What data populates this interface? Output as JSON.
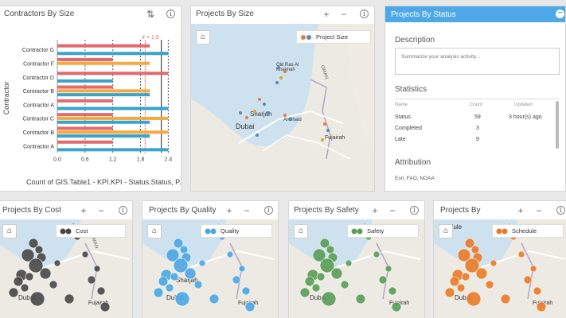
{
  "contractors": {
    "title": "Contractors By Size",
    "ylabel": "Contractor",
    "xlabel": "Count of GIS.Table1 - KPI.KPI - Status.Status, P...",
    "mean_label": "x̄ = 1.9",
    "xticks": [
      "0.0",
      "0.6",
      "1.2",
      "1.8",
      "2.4"
    ],
    "colors": {
      "blue": "#3aa3c9",
      "orange": "#f6a941",
      "red": "#e2696c"
    }
  },
  "chart_data": {
    "type": "bar",
    "orientation": "horizontal",
    "categories": [
      "Contractor G",
      "Contractor F",
      "Contractor D",
      "Contractor B",
      "Contractor A",
      "Contractor C",
      "Contractor B",
      "Contractor A"
    ],
    "series": [
      {
        "values": [
          2.0,
          1.2,
          2.4,
          1.2,
          1.2,
          1.2,
          1.2,
          1.2
        ]
      },
      {
        "values": [
          0,
          2.0,
          0,
          2.0,
          0,
          2.4,
          2.4,
          0
        ]
      },
      {
        "values": [
          2.4,
          0,
          1.2,
          2.0,
          2.4,
          2.0,
          2.0,
          2.4
        ]
      }
    ],
    "title": "Contractors By Size",
    "ylabel": "Contractor",
    "xlabel": "Count of GIS.Table1 - KPI.KPI - Status.Status, P...",
    "xlim": [
      0,
      2.6
    ],
    "xticks": [
      0,
      0.6,
      1.2,
      1.8,
      2.4
    ],
    "reference_lines": [
      {
        "label": "x̄ = 1.9",
        "value": 1.9
      }
    ]
  },
  "projects_size": {
    "title": "Projects By Size",
    "legend": "Project Size",
    "places": [
      "Old Ras Al Khaimah",
      "OMAN",
      "Sharjah",
      "Al Dhaid",
      "Dubai",
      "Fujairah"
    ]
  },
  "status": {
    "title": "Projects By Status",
    "description_label": "Description",
    "description_placeholder": "Summarize your analysis activity...",
    "statistics_label": "Statistics",
    "columns": [
      "Name",
      "Count",
      "Updated"
    ],
    "rows": [
      {
        "name": "Status",
        "count": "59",
        "updated": "3 hour(s) ago"
      },
      {
        "name": "Completed",
        "count": "3",
        "updated": ""
      },
      {
        "name": "Late",
        "count": "9",
        "updated": ""
      }
    ],
    "attribution_label": "Attribution",
    "attribution": "Esri, FAO, NOAA"
  },
  "cost": {
    "title": "Projects By Cost",
    "legend": "Cost",
    "color": "#474747"
  },
  "quality": {
    "title": "Projects By Quality",
    "legend": "Quality",
    "color": "#4ba6e3"
  },
  "safety": {
    "title": "Projects By Safety",
    "legend": "Safety",
    "color": "#5a9d57"
  },
  "schedule": {
    "title": "Projects By",
    "legend": "Schedule",
    "color": "#ea7a27"
  },
  "map_labels": {
    "dubai": "Dubai",
    "fujairah": "Fujairah",
    "sharjah": "Sharjah",
    "oman": "OMAN",
    "dule": "dule"
  },
  "icons": {
    "plus": "+",
    "minus": "−",
    "info": "i",
    "home": "⌂",
    "sort": "⇅",
    "collapse": "−"
  }
}
